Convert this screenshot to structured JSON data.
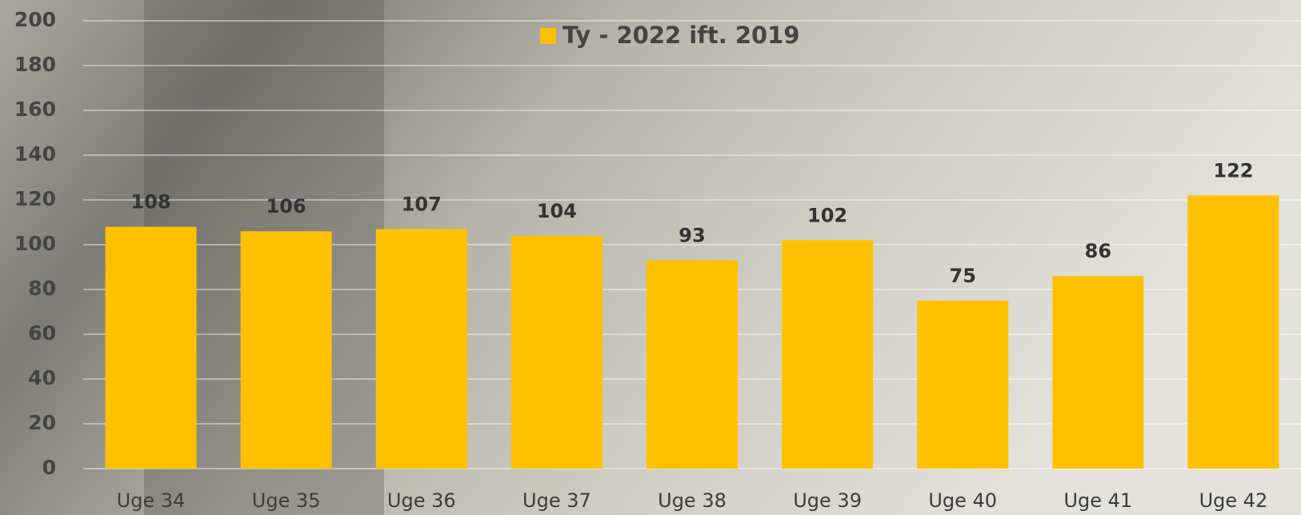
{
  "chart_data": {
    "type": "bar",
    "legend": "Ty - 2022 ift. 2019",
    "categories": [
      "Uge 34",
      "Uge 35",
      "Uge 36",
      "Uge 37",
      "Uge 38",
      "Uge 39",
      "Uge 40",
      "Uge 41",
      "Uge 42"
    ],
    "values": [
      108,
      106,
      107,
      104,
      93,
      102,
      75,
      86,
      122
    ],
    "color": "#ffc000",
    "ylim": [
      0,
      200
    ],
    "yticks": [
      0,
      20,
      40,
      60,
      80,
      100,
      120,
      140,
      160,
      180,
      200
    ],
    "grid": true
  }
}
